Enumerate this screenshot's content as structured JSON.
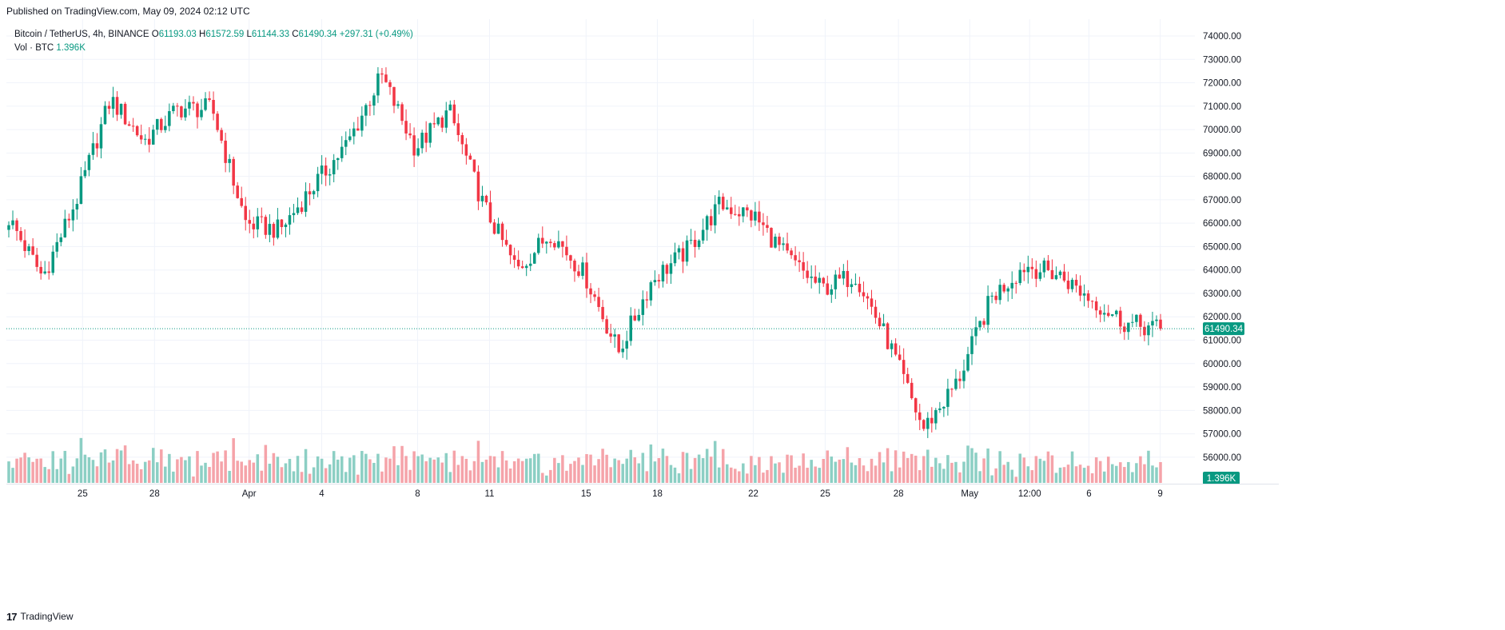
{
  "header": {
    "published": "Published on TradingView.com, May 09, 2024 02:12 UTC"
  },
  "legend": {
    "symbol": "Bitcoin / TetherUS, 4h, BINANCE",
    "o_label": "O",
    "o_value": "61193.03",
    "h_label": "H",
    "h_value": "61572.59",
    "l_label": "L",
    "l_value": "61144.33",
    "c_label": "C",
    "c_value": "61490.34",
    "change": "+297.31 (+0.49%)",
    "vol_label": "Vol · BTC",
    "vol_value": "1.396K"
  },
  "footer": {
    "logo": "17",
    "brand": "TradingView"
  },
  "colors": {
    "up": "#089981",
    "down": "#F23645",
    "up_volume": "#8ccfc4",
    "down_volume": "#f5a3a9",
    "grid": "#f0f3fa",
    "axis_text": "#131722"
  },
  "chart_data": {
    "type": "candlestick",
    "symbol": "BTCUSDT",
    "interval": "4h",
    "exchange": "BINANCE",
    "y_axis": {
      "ticks": [
        "74000.00",
        "73000.00",
        "72000.00",
        "71000.00",
        "70000.00",
        "69000.00",
        "68000.00",
        "67000.00",
        "66000.00",
        "65000.00",
        "64000.00",
        "63000.00",
        "62000.00",
        "61000.00",
        "60000.00",
        "59000.00",
        "58000.00",
        "57000.00",
        "56000.00"
      ],
      "range": [
        55000,
        74500
      ]
    },
    "x_axis": {
      "ticks": [
        "25",
        "28",
        "Apr",
        "4",
        "8",
        "11",
        "15",
        "18",
        "22",
        "25",
        "28",
        "May",
        "12:00",
        "6",
        "9"
      ]
    },
    "last_price": {
      "value": 61490.34,
      "label": "61490.34"
    },
    "last_volume": {
      "label": "1.396K"
    },
    "approx_closes": [
      {
        "date": "Mar 22",
        "close": 66200
      },
      {
        "date": "Mar 23",
        "close": 63700
      },
      {
        "date": "Mar 25",
        "close": 67000
      },
      {
        "date": "Mar 26",
        "close": 71300
      },
      {
        "date": "Mar 28",
        "close": 69500
      },
      {
        "date": "Mar 29",
        "close": 70900
      },
      {
        "date": "Apr 1",
        "close": 70900
      },
      {
        "date": "Apr 2",
        "close": 66000
      },
      {
        "date": "Apr 3",
        "close": 65700
      },
      {
        "date": "Apr 5",
        "close": 67600
      },
      {
        "date": "Apr 7",
        "close": 69400
      },
      {
        "date": "Apr 8",
        "close": 72300
      },
      {
        "date": "Apr 9",
        "close": 69200
      },
      {
        "date": "Apr 11",
        "close": 70800
      },
      {
        "date": "Apr 12",
        "close": 66800
      },
      {
        "date": "Apr 13",
        "close": 64000
      },
      {
        "date": "Apr 14",
        "close": 65600
      },
      {
        "date": "Apr 16",
        "close": 63800
      },
      {
        "date": "Apr 17",
        "close": 60500
      },
      {
        "date": "Apr 18",
        "close": 63600
      },
      {
        "date": "Apr 20",
        "close": 64800
      },
      {
        "date": "Apr 22",
        "close": 66800
      },
      {
        "date": "Apr 24",
        "close": 66300
      },
      {
        "date": "Apr 25",
        "close": 64500
      },
      {
        "date": "Apr 27",
        "close": 63200
      },
      {
        "date": "Apr 28",
        "close": 63800
      },
      {
        "date": "Apr 30",
        "close": 60800
      },
      {
        "date": "May 1",
        "close": 57200
      },
      {
        "date": "May 2",
        "close": 59200
      },
      {
        "date": "May 3",
        "close": 62800
      },
      {
        "date": "May 5",
        "close": 64200
      },
      {
        "date": "May 6",
        "close": 63800
      },
      {
        "date": "May 7",
        "close": 62700
      },
      {
        "date": "May 8",
        "close": 61700
      },
      {
        "date": "May 9",
        "close": 61490
      }
    ]
  }
}
